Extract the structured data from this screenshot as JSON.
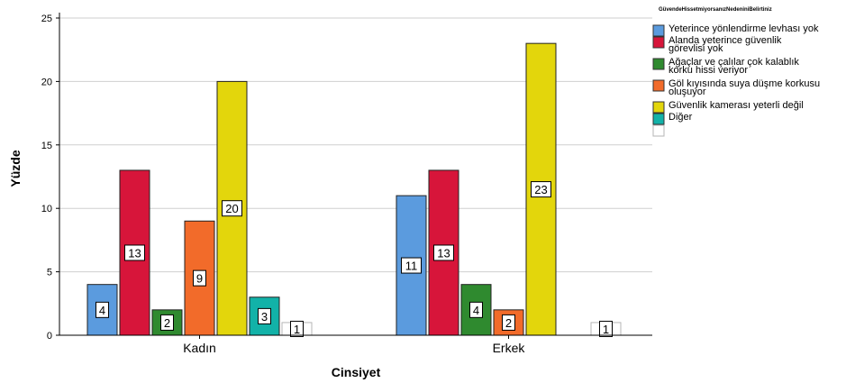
{
  "chart_data": {
    "type": "bar",
    "xlabel": "Cinsiyet",
    "ylabel": "Yüzde",
    "ylim": [
      0,
      25
    ],
    "yticks": [
      0,
      5,
      10,
      15,
      20,
      25
    ],
    "grid": "horizontal",
    "legend_position": "top-right",
    "legend_title": "GüvendeHissetmiyorsanızNedeniniBelirtiniz",
    "categories": [
      "Kadın",
      "Erkek"
    ],
    "series": [
      {
        "name": "Yeterince yönlendirme levhası yok",
        "color": "#5b9bde",
        "values": [
          4,
          11
        ]
      },
      {
        "name": "Alanda yeterince güvenlik görevlisi yok",
        "color": "#d7153a",
        "values": [
          13,
          13
        ]
      },
      {
        "name": "Ağaçlar ve çalılar çok kalablık korku hissi veriyor",
        "color": "#2f8a2f",
        "values": [
          2,
          4
        ]
      },
      {
        "name": "Göl kıyısında suya düşme korkusu oluşuyor",
        "color": "#f26b2a",
        "values": [
          9,
          2
        ]
      },
      {
        "name": "Güvenlik kamerası yeterli değil",
        "color": "#e3d60c",
        "values": [
          20,
          23
        ]
      },
      {
        "name": "Diğer",
        "color": "#12b2a8",
        "values": [
          3,
          null
        ]
      },
      {
        "name": "",
        "color": "#ffffff",
        "values": [
          1,
          1
        ]
      }
    ]
  }
}
